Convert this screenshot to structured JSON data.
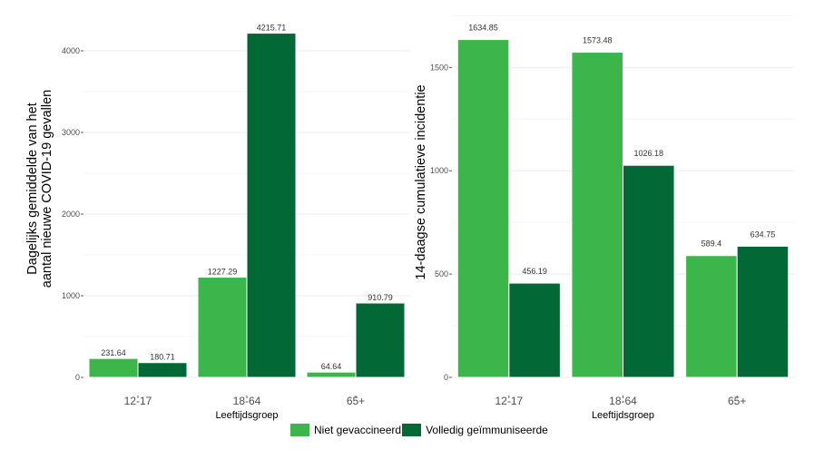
{
  "colors": {
    "niet_gevaccineerd": "#3cb54a",
    "volledig": "#016836"
  },
  "legend": {
    "items": [
      {
        "label": "Niet gevaccineerd",
        "color": "#3cb54a"
      },
      {
        "label": "Volledig geïmmuniseerde",
        "color": "#016836"
      }
    ]
  },
  "chart_data": [
    {
      "type": "bar",
      "title": "",
      "xlabel": "Leeftijdsgroep",
      "ylabel_lines": [
        "Dagelijks gemiddelde van het",
        "aantal nieuwe COVID-19 gevallen"
      ],
      "ylabel": "Dagelijks gemiddelde van het aantal nieuwe COVID-19 gevallen",
      "categories": [
        "12-17",
        "18-64",
        "65+"
      ],
      "ylim": [
        0,
        4400
      ],
      "yticks": [
        0,
        1000,
        2000,
        3000,
        4000
      ],
      "tick_labels": [
        "0",
        "1000",
        "2000",
        "3000",
        "4000"
      ],
      "grid": true,
      "legend_position": "bottom",
      "series": [
        {
          "name": "Niet gevaccineerd",
          "values": [
            231.64,
            1227.29,
            64.64
          ],
          "labels": [
            "231.64",
            "1227.29",
            "64.64"
          ]
        },
        {
          "name": "Volledig geïmmuniseerde",
          "values": [
            180.71,
            4215.71,
            910.79
          ],
          "labels": [
            "180.71",
            "4215.71",
            "910.79"
          ]
        }
      ]
    },
    {
      "type": "bar",
      "title": "",
      "xlabel": "Leeftijdsgroep",
      "ylabel_lines": [
        "14-daagse cumulatieve incidentie"
      ],
      "ylabel": "14-daagse cumulatieve incidentie",
      "categories": [
        "12-17",
        "18-64",
        "65+"
      ],
      "ylim": [
        0,
        1800
      ],
      "yticks": [
        0,
        500,
        1000,
        1500
      ],
      "tick_labels": [
        "0",
        "500",
        "1000",
        "1500"
      ],
      "grid": true,
      "legend_position": "bottom",
      "series": [
        {
          "name": "Niet gevaccineerd",
          "values": [
            1634.85,
            1573.48,
            589.4
          ],
          "labels": [
            "1634.85",
            "1573.48",
            "589.4"
          ]
        },
        {
          "name": "Volledig geïmmuniseerde",
          "values": [
            456.19,
            1026.18,
            634.75
          ],
          "labels": [
            "456.19",
            "1026.18",
            "634.75"
          ]
        }
      ]
    }
  ]
}
